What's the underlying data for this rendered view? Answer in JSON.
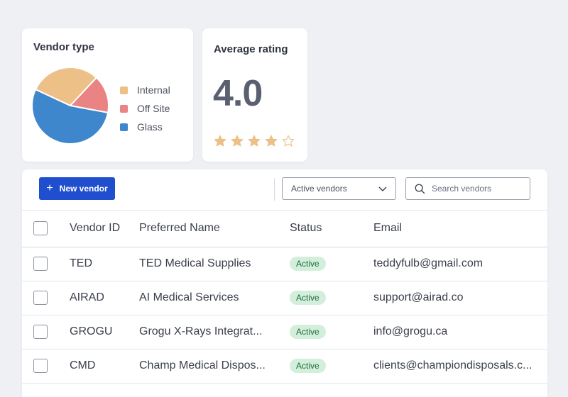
{
  "vendor_type_card": {
    "title": "Vendor type",
    "legend": [
      {
        "label": "Internal",
        "color": "#ecc086"
      },
      {
        "label": "Off Site",
        "color": "#ea8383"
      },
      {
        "label": "Glass",
        "color": "#3f87cc"
      }
    ]
  },
  "chart_data": {
    "type": "pie",
    "title": "Vendor type",
    "categories": [
      "Internal",
      "Off Site",
      "Glass"
    ],
    "values": [
      30,
      16,
      54
    ],
    "colors": [
      "#ecc086",
      "#ea8383",
      "#3f87cc"
    ],
    "legend_position": "right"
  },
  "rating_card": {
    "title": "Average rating",
    "value": "4.0",
    "stars_filled": 4,
    "stars_total": 5,
    "star_color": "#ecc086"
  },
  "toolbar": {
    "new_vendor_label": "New vendor",
    "filter_value": "Active vendors",
    "search_placeholder": "Search vendors"
  },
  "table": {
    "headers": {
      "vendor_id": "Vendor ID",
      "preferred_name": "Preferred Name",
      "status": "Status",
      "email": "Email"
    },
    "rows": [
      {
        "vendor_id": "TED",
        "preferred_name": "TED Medical Supplies",
        "status": "Active",
        "email": "teddyfulb@gmail.com"
      },
      {
        "vendor_id": "AIRAD",
        "preferred_name": "AI Medical Services",
        "status": "Active",
        "email": "support@airad.co"
      },
      {
        "vendor_id": "GROGU",
        "preferred_name": "Grogu X-Rays Integrat...",
        "status": "Active",
        "email": "info@grogu.ca"
      },
      {
        "vendor_id": "CMD",
        "preferred_name": "Champ Medical Dispos...",
        "status": "Active",
        "email": "clients@championdisposals.c..."
      }
    ]
  }
}
